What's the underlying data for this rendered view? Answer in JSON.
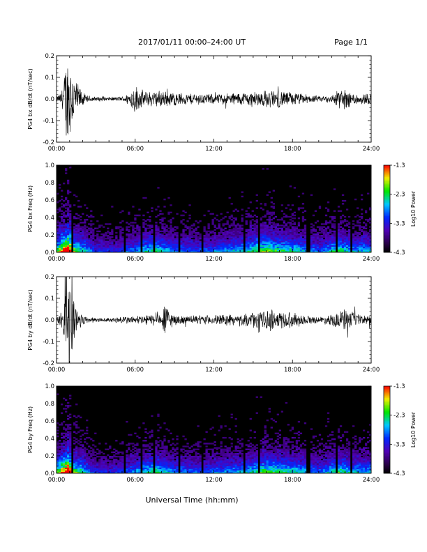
{
  "header": {
    "date_range": "2017/01/11  00:00–24:00 UT",
    "page": "Page 1/1"
  },
  "xlabel": "Universal Time (hh:mm)",
  "chart_data": [
    {
      "type": "line",
      "ylabel": "PG4 bx dB/dt (nT/sec)",
      "xlim": [
        0,
        24
      ],
      "ylim": [
        -0.2,
        0.2
      ],
      "x_ticks": [
        "00:00",
        "06:00",
        "12:00",
        "18:00",
        "24:00"
      ],
      "y_ticks": [
        "-0.2",
        "-0.1",
        "0.0",
        "0.1",
        "0.2"
      ],
      "envelope": {
        "x_hours": [
          0,
          0.3,
          0.5,
          0.7,
          0.9,
          1.05,
          1.3,
          1.6,
          2.2,
          3.0,
          4.0,
          5.0,
          5.5,
          6.0,
          6.3,
          7.0,
          8.0,
          9.0,
          10.0,
          11.0,
          12.0,
          13.0,
          14.0,
          15.0,
          16.0,
          17.0,
          18.0,
          19.0,
          20.0,
          21.0,
          21.5,
          22.0,
          23.0,
          24.0
        ],
        "amplitude": [
          0.015,
          0.03,
          0.08,
          0.2,
          0.25,
          0.25,
          0.15,
          0.08,
          0.02,
          0.012,
          0.01,
          0.012,
          0.03,
          0.08,
          0.05,
          0.04,
          0.045,
          0.035,
          0.03,
          0.03,
          0.025,
          0.03,
          0.035,
          0.04,
          0.045,
          0.045,
          0.035,
          0.025,
          0.015,
          0.02,
          0.06,
          0.05,
          0.03,
          0.03
        ]
      }
    },
    {
      "type": "heatmap",
      "ylabel": "PG4 bx Freq (Hz)",
      "colorbar_label": "Log10 Power",
      "colorbar_ticks": [
        "-1.3",
        "-2.3",
        "-3.3",
        "-4.3"
      ],
      "clim": [
        -4.3,
        -1.3
      ],
      "xlim": [
        0,
        24
      ],
      "ylim": [
        0,
        1.0
      ],
      "x_ticks": [
        "00:00",
        "06:00",
        "12:00",
        "18:00",
        "24:00"
      ],
      "y_ticks": [
        "0.0",
        "0.2",
        "0.4",
        "0.6",
        "0.8",
        "1.0"
      ],
      "activity": {
        "x_hours": [
          0,
          0.5,
          0.9,
          1.3,
          2.0,
          3.0,
          4.5,
          6.0,
          7.5,
          9.0,
          11.0,
          12.5,
          14.5,
          16.0,
          17.0,
          18.5,
          20.0,
          21.5,
          22.5,
          24.0
        ],
        "level": [
          0.5,
          0.8,
          1.0,
          0.6,
          0.45,
          0.25,
          0.25,
          0.35,
          0.5,
          0.35,
          0.3,
          0.35,
          0.45,
          0.6,
          0.5,
          0.45,
          0.3,
          0.5,
          0.4,
          0.4
        ]
      },
      "dark_gaps_hours": [
        1.2,
        5.2,
        6.5,
        7.4,
        9.3,
        11.1,
        14.3,
        15.5,
        19.2,
        21.3,
        22.5
      ]
    },
    {
      "type": "line",
      "ylabel": "PG4 by dB/dt (nT/sec)",
      "xlim": [
        0,
        24
      ],
      "ylim": [
        -0.2,
        0.2
      ],
      "x_ticks": [
        "00:00",
        "06:00",
        "12:00",
        "18:00",
        "24:00"
      ],
      "y_ticks": [
        "-0.2",
        "-0.1",
        "0.0",
        "0.1",
        "0.2"
      ],
      "envelope": {
        "x_hours": [
          0,
          0.3,
          0.5,
          0.7,
          0.9,
          1.05,
          1.3,
          1.6,
          2.2,
          3.0,
          4.0,
          5.0,
          6.0,
          7.0,
          8.0,
          8.2,
          9.0,
          10.0,
          12.0,
          13.0,
          14.0,
          15.0,
          16.0,
          16.5,
          17.0,
          18.0,
          19.0,
          20.0,
          21.0,
          22.0,
          23.0,
          24.0
        ],
        "amplitude": [
          0.015,
          0.03,
          0.08,
          0.2,
          0.25,
          0.25,
          0.15,
          0.06,
          0.02,
          0.012,
          0.01,
          0.02,
          0.02,
          0.03,
          0.03,
          0.09,
          0.025,
          0.02,
          0.025,
          0.03,
          0.025,
          0.04,
          0.05,
          0.06,
          0.05,
          0.04,
          0.025,
          0.015,
          0.03,
          0.06,
          0.025,
          0.025
        ]
      }
    },
    {
      "type": "heatmap",
      "ylabel": "PG4 by Freq (Hz)",
      "colorbar_label": "Log10 Power",
      "colorbar_ticks": [
        "-1.3",
        "-2.3",
        "-3.3",
        "-4.3"
      ],
      "clim": [
        -4.3,
        -1.3
      ],
      "xlim": [
        0,
        24
      ],
      "ylim": [
        0,
        1.0
      ],
      "x_ticks": [
        "00:00",
        "06:00",
        "12:00",
        "18:00",
        "24:00"
      ],
      "y_ticks": [
        "0.0",
        "0.2",
        "0.4",
        "0.6",
        "0.8",
        "1.0"
      ],
      "activity": {
        "x_hours": [
          0,
          0.5,
          0.9,
          1.3,
          2.0,
          3.0,
          4.5,
          6.0,
          7.5,
          9.0,
          11.0,
          12.5,
          14.5,
          16.0,
          17.0,
          18.5,
          20.0,
          21.5,
          22.5,
          24.0
        ],
        "level": [
          0.5,
          0.8,
          1.0,
          0.6,
          0.45,
          0.25,
          0.25,
          0.35,
          0.5,
          0.35,
          0.3,
          0.35,
          0.4,
          0.55,
          0.5,
          0.45,
          0.3,
          0.5,
          0.4,
          0.4
        ]
      },
      "dark_gaps_hours": [
        1.2,
        5.2,
        6.5,
        7.4,
        9.3,
        11.1,
        14.3,
        15.5,
        19.2,
        21.3,
        22.5
      ]
    }
  ]
}
